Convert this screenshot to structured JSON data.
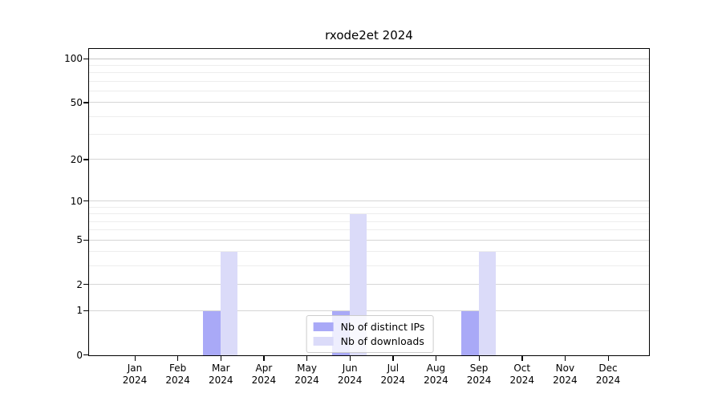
{
  "chart_data": {
    "type": "bar",
    "title": "rxode2et 2024",
    "categories": [
      "Jan",
      "Feb",
      "Mar",
      "Apr",
      "May",
      "Jun",
      "Jul",
      "Aug",
      "Sep",
      "Oct",
      "Nov",
      "Dec"
    ],
    "x_year_label": "2024",
    "series": [
      {
        "name": "Nb of distinct IPs",
        "color": "#a9a9f7",
        "values": [
          0,
          0,
          1,
          0,
          0,
          1,
          0,
          0,
          1,
          0,
          0,
          0
        ]
      },
      {
        "name": "Nb of downloads",
        "color": "#dbdbf9",
        "values": [
          0,
          0,
          4,
          0,
          0,
          8,
          0,
          0,
          4,
          0,
          0,
          0
        ]
      }
    ],
    "y_axis": {
      "scale": "log1p",
      "ticks": [
        0,
        1,
        2,
        5,
        10,
        20,
        50,
        100
      ],
      "minor_gridlines": [
        3,
        4,
        6,
        7,
        8,
        9,
        30,
        40,
        60,
        70,
        80,
        90
      ],
      "ylim": [
        0,
        116
      ]
    },
    "xlabel": "",
    "ylabel": "",
    "grid": "horizontal",
    "legend_position": "bottom-center"
  },
  "colors": {
    "background": "#ffffff",
    "axis": "#000000",
    "grid_major": "#d6d6d6",
    "grid_minor": "#ededed",
    "grid_top": "#c6c6c6",
    "legend_border": "#cccccc"
  }
}
